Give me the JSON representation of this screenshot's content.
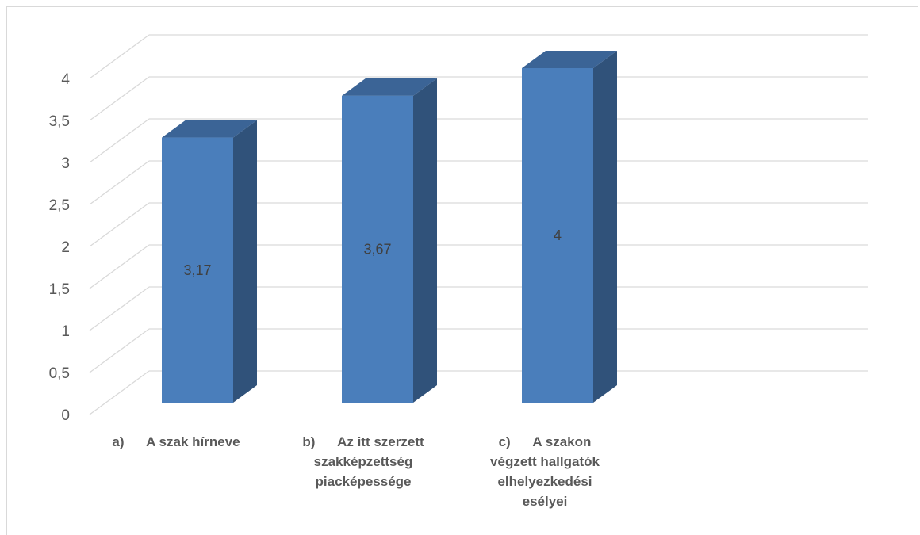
{
  "chart_data": {
    "type": "bar",
    "style": "3d-column",
    "categories": [
      [
        "a)      A szak hírneve"
      ],
      [
        "b)      Az itt szerzett",
        "szakképzettség",
        "piacképessége"
      ],
      [
        "c)      A szakon",
        "végzett hallgatók",
        "elhelyezkedési",
        "esélyei"
      ]
    ],
    "values": [
      3.17,
      3.67,
      4
    ],
    "data_labels": [
      "3,17",
      "3,67",
      "4"
    ],
    "ylim": [
      0,
      4
    ],
    "yticks": [
      0,
      0.5,
      1,
      1.5,
      2,
      2.5,
      3,
      3.5,
      4
    ],
    "ytick_labels": [
      "0",
      "0,5",
      "1",
      "1,5",
      "2",
      "2,5",
      "3",
      "3,5",
      "4"
    ],
    "grid": true,
    "legend": "none",
    "colors": {
      "bar_front": "#4a7ebb",
      "bar_side": "#30527a",
      "bar_top": "#3b6496",
      "grid": "#d9d9d9",
      "text": "#595959"
    }
  }
}
